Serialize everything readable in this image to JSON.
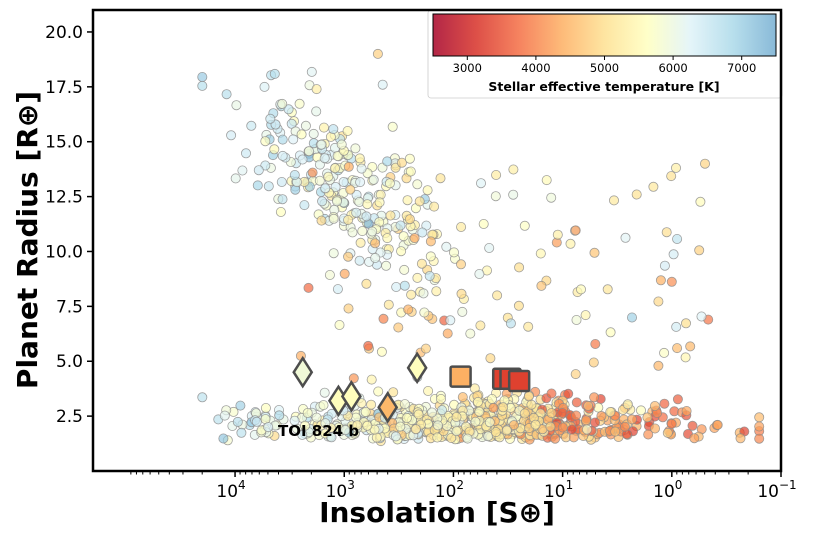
{
  "chart_data": {
    "type": "scatter",
    "xlabel": "Insolation [S⊕]",
    "ylabel": "Planet Radius [R⊕]",
    "x_scale": "log",
    "x_reversed": true,
    "xlim": [
      200000,
      0.1
    ],
    "ylim": [
      0,
      21
    ],
    "x_ticks": [
      {
        "value": 10000,
        "base": "10",
        "exp": "4"
      },
      {
        "value": 1000,
        "base": "10",
        "exp": "3"
      },
      {
        "value": 100,
        "base": "10",
        "exp": "2"
      },
      {
        "value": 10,
        "base": "10",
        "exp": "1"
      },
      {
        "value": 1,
        "base": "10",
        "exp": "0"
      },
      {
        "value": 0.1,
        "base": "10",
        "exp": "−1"
      }
    ],
    "y_ticks": [
      {
        "value": 2.5,
        "label": "2.5"
      },
      {
        "value": 5.0,
        "label": "5.0"
      },
      {
        "value": 7.5,
        "label": "7.5"
      },
      {
        "value": 10.0,
        "label": "10.0"
      },
      {
        "value": 12.5,
        "label": "12.5"
      },
      {
        "value": 15.0,
        "label": "15.0"
      },
      {
        "value": 17.5,
        "label": "17.5"
      },
      {
        "value": 20.0,
        "label": "20.0"
      }
    ],
    "colorbar": {
      "label": "Stellar effective temperature [K]",
      "range": [
        2500,
        7500
      ],
      "ticks": [
        {
          "value": 3000,
          "label": "3000"
        },
        {
          "value": 4000,
          "label": "4000"
        },
        {
          "value": 5000,
          "label": "5000"
        },
        {
          "value": 6000,
          "label": "6000"
        },
        {
          "value": 7000,
          "label": "7000"
        }
      ],
      "colormap": [
        "#a50026",
        "#d73027",
        "#f46d43",
        "#fdae61",
        "#fee090",
        "#ffffbf",
        "#e0f3f8",
        "#abd9e9",
        "#74add1"
      ]
    },
    "background_planets": {
      "description_count": 1100,
      "note": "known exoplanets colored by host star temperature"
    },
    "highlighted_planets": [
      {
        "marker": "diamond",
        "insolation": 2400,
        "radius": 4.5,
        "teff": 5900
      },
      {
        "marker": "diamond",
        "insolation": 1130,
        "radius": 3.2,
        "teff": 5600
      },
      {
        "marker": "diamond",
        "insolation": 860,
        "radius": 3.4,
        "teff": 5600
      },
      {
        "marker": "diamond",
        "insolation": 215,
        "radius": 4.7,
        "teff": 5600
      },
      {
        "marker": "diamond",
        "insolation": 400,
        "radius": 2.9,
        "teff": 4500,
        "label": "TOI 824 b"
      },
      {
        "marker": "square",
        "insolation": 86,
        "radius": 4.3,
        "teff": 4400
      },
      {
        "marker": "square",
        "insolation": 35,
        "radius": 4.2,
        "teff": 3300
      },
      {
        "marker": "square",
        "insolation": 30,
        "radius": 4.2,
        "teff": 3300
      },
      {
        "marker": "square",
        "insolation": 25,
        "radius": 4.1,
        "teff": 3300
      }
    ],
    "annotations": [
      {
        "text": "TOI 824 b",
        "insolation": 650,
        "radius": 1.8
      }
    ]
  }
}
